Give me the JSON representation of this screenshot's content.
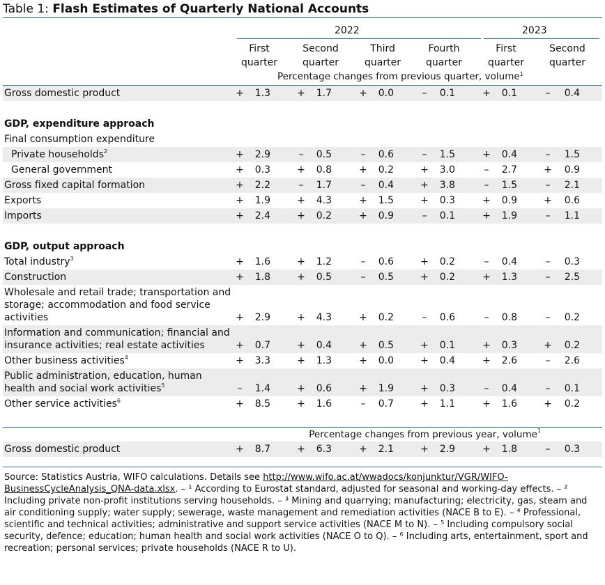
{
  "title": {
    "prefix": "Table 1: ",
    "main": "Flash Estimates of Quarterly National Accounts"
  },
  "years": [
    "2022",
    "2023"
  ],
  "quarters": [
    [
      "First",
      "quarter"
    ],
    [
      "Second",
      "quarter"
    ],
    [
      "Third",
      "quarter"
    ],
    [
      "Fourth",
      "quarter"
    ],
    [
      "First",
      "quarter"
    ],
    [
      "Second",
      "quarter"
    ]
  ],
  "unit_qoq": "Percentage changes from previous quarter, volume",
  "unit_yoy": "Percentage changes from previous year, volume",
  "rows": [
    {
      "label": "Gross domestic product",
      "type": "data",
      "shade": true,
      "signs": [
        "+",
        "+",
        "+",
        "–",
        "+",
        "–"
      ],
      "values": [
        "1.3",
        "1.7",
        "0.0",
        "0.1",
        "0.1",
        "0.4"
      ]
    },
    {
      "type": "gap"
    },
    {
      "label": "GDP, expenditure approach",
      "type": "section"
    },
    {
      "label": "Final consumption expenditure",
      "type": "text"
    },
    {
      "label": "Private households",
      "sup": "2",
      "indent": true,
      "type": "data",
      "shade": true,
      "signs": [
        "+",
        "–",
        "–",
        "–",
        "+",
        "–"
      ],
      "values": [
        "2.9",
        "0.5",
        "0.6",
        "1.5",
        "0.4",
        "1.5"
      ]
    },
    {
      "label": "General government",
      "indent": true,
      "type": "data",
      "signs": [
        "+",
        "+",
        "+",
        "+",
        "–",
        "+"
      ],
      "values": [
        "0.3",
        "0.8",
        "0.2",
        "3.0",
        "2.7",
        "0.9"
      ]
    },
    {
      "label": "Gross fixed capital formation",
      "type": "data",
      "shade": true,
      "signs": [
        "+",
        "–",
        "–",
        "+",
        "–",
        "–"
      ],
      "values": [
        "2.2",
        "1.7",
        "0.4",
        "3.8",
        "1.5",
        "2.1"
      ]
    },
    {
      "label": "Exports",
      "type": "data",
      "signs": [
        "+",
        "+",
        "+",
        "+",
        "+",
        "+"
      ],
      "values": [
        "1.9",
        "4.3",
        "1.5",
        "0.3",
        "0.9",
        "0.6"
      ]
    },
    {
      "label": "Imports",
      "type": "data",
      "shade": true,
      "signs": [
        "+",
        "+",
        "+",
        "–",
        "+",
        "–"
      ],
      "values": [
        "2.4",
        "0.2",
        "0.9",
        "0.1",
        "1.9",
        "1.1"
      ]
    },
    {
      "type": "gap"
    },
    {
      "label": "GDP, output approach",
      "type": "section"
    },
    {
      "label": "Total industry",
      "sup": "3",
      "type": "data",
      "signs": [
        "+",
        "+",
        "–",
        "+",
        "–",
        "–"
      ],
      "values": [
        "1.6",
        "1.2",
        "0.6",
        "0.2",
        "0.4",
        "0.3"
      ]
    },
    {
      "label": "Construction",
      "type": "data",
      "shade": true,
      "signs": [
        "+",
        "+",
        "–",
        "+",
        "+",
        "–"
      ],
      "values": [
        "1.8",
        "0.5",
        "0.5",
        "0.2",
        "1.3",
        "2.5"
      ]
    },
    {
      "label": "Wholesale and retail trade; transportation and storage; accommodation and food service activities",
      "type": "data",
      "signs": [
        "+",
        "+",
        "+",
        "–",
        "–",
        "–"
      ],
      "values": [
        "2.9",
        "4.3",
        "0.2",
        "0.6",
        "0.8",
        "0.2"
      ]
    },
    {
      "label": "Information and communication; financial and insurance activities; real estate activities",
      "type": "data",
      "shade": true,
      "signs": [
        "+",
        "+",
        "+",
        "+",
        "+",
        "+"
      ],
      "values": [
        "0.7",
        "0.4",
        "0.5",
        "0.1",
        "0.3",
        "0.2"
      ]
    },
    {
      "label": "Other business activities",
      "sup": "4",
      "type": "data",
      "signs": [
        "+",
        "+",
        "+",
        "+",
        "+",
        "–"
      ],
      "values": [
        "3.3",
        "1.3",
        "0.0",
        "0.4",
        "2.6",
        "2.6"
      ]
    },
    {
      "label": "Public administration, education, human health and social work activities",
      "sup": "5",
      "type": "data",
      "shade": true,
      "signs": [
        "–",
        "+",
        "+",
        "+",
        "–",
        "–"
      ],
      "values": [
        "1.4",
        "0.6",
        "1.9",
        "0.3",
        "0.4",
        "0.1"
      ]
    },
    {
      "label": "Other service activities",
      "sup": "6",
      "type": "data",
      "signs": [
        "+",
        "+",
        "–",
        "+",
        "+",
        "+"
      ],
      "values": [
        "8.5",
        "1.6",
        "0.7",
        "1.1",
        "1.6",
        "0.2"
      ]
    }
  ],
  "gdp_yoy": {
    "label": "Gross domestic product",
    "signs": [
      "+",
      "+",
      "+",
      "+",
      "+",
      "–"
    ],
    "values": [
      "8.7",
      "6.3",
      "2.1",
      "2.9",
      "1.8",
      "0.3"
    ]
  },
  "footnote": {
    "source": "Source: Statistics Austria, WIFO calculations. Details see ",
    "link": "http://www.wifo.ac.at/wwadocs/konjunktur/VGR/WIFO-BusinessCycleAnalysis_QNA-data.xlsx",
    "rest": ". – ¹ According to Eurostat standard, adjusted for seasonal and working-day effects. – ² Including private non-profit institutions serving households. – ³ Mining and quarrying; manufacturing; electricity, gas, steam and air conditioning supply; water supply; sewerage, waste management and remediation activities (NACE B to E). – ⁴ Professional, scientific and technical activities; administrative and support service activities (NACE M to N). – ⁵ Including compulsory social security, defence; education; human health and social work activities (NACE O to Q). – ⁶ Including arts, entertainment, sport and recreation; personal services; private households (NACE R to U)."
  }
}
